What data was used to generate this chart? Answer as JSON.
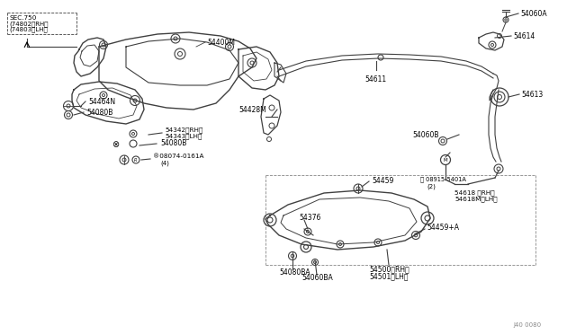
{
  "background_color": "#ffffff",
  "line_color": "#404040",
  "text_color": "#000000",
  "fig_width": 6.4,
  "fig_height": 3.72,
  "dpi": 100,
  "watermark": "J40 0080",
  "labels": {
    "sec750": "SEC.750",
    "rh74802": "(74802〈RH〉",
    "lh74803": "(74803〈LH〉",
    "p54400M": "54400M",
    "p54464N": "54464N",
    "p54080B_top": "54080B",
    "p54342": "54342〈RH〉",
    "p54343": "54343〈LH〉",
    "p54080B_bot": "54080B",
    "p08074": "®08074-0161A",
    "p4": "(4)",
    "p54428M": "54428M",
    "p54376": "54376",
    "p54080BA": "54080BA",
    "p54060BA": "54060BA",
    "p54500": "54500〈RH〉",
    "p54501": "54501〈LH〉",
    "p54459": "54459",
    "p54459A": "54459+A",
    "p54060B": "54060B",
    "p08915": "Ⓜ 08915-5401A",
    "p2": "(2)",
    "p54618RH": "54618 〈RH〉",
    "p54618MLH": "54618M〈LH〉",
    "p54611": "54611",
    "p54060A": "54060A",
    "p54614": "54614",
    "p54613": "54613"
  }
}
